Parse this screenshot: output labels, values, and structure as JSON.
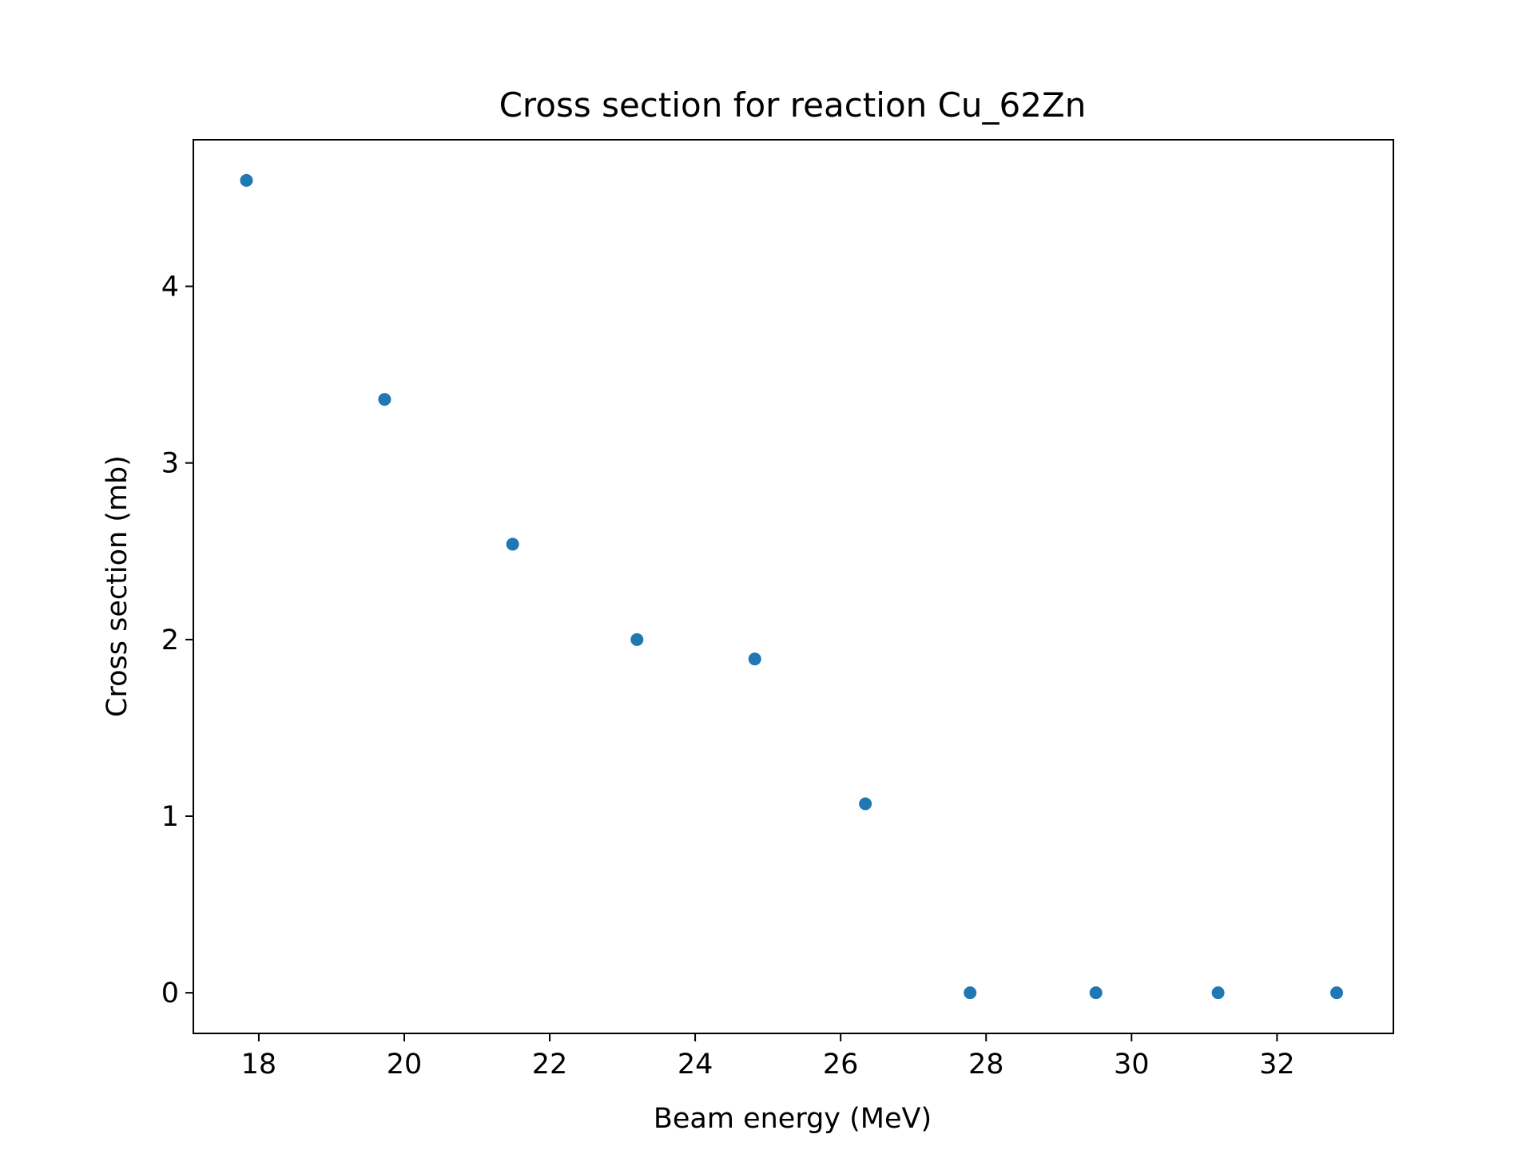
{
  "chart_data": {
    "type": "scatter",
    "title": "Cross section for reaction Cu_62Zn",
    "xlabel": "Beam energy (MeV)",
    "ylabel": "Cross section (mb)",
    "xlim": [
      17.1,
      33.6
    ],
    "ylim": [
      -0.23,
      4.83
    ],
    "xticks": [
      18,
      20,
      22,
      24,
      26,
      28,
      30,
      32
    ],
    "yticks": [
      0,
      1,
      2,
      3,
      4
    ],
    "grid": false,
    "legend": "none",
    "marker_color": "#1f77b4",
    "series": [
      {
        "x": [
          17.83,
          19.73,
          21.49,
          23.2,
          24.82,
          26.34,
          27.78,
          29.51,
          31.19,
          32.82
        ],
        "y": [
          4.6,
          3.36,
          2.54,
          2.0,
          1.89,
          1.07,
          0.0,
          0.0,
          0.0,
          0.0
        ]
      }
    ]
  }
}
